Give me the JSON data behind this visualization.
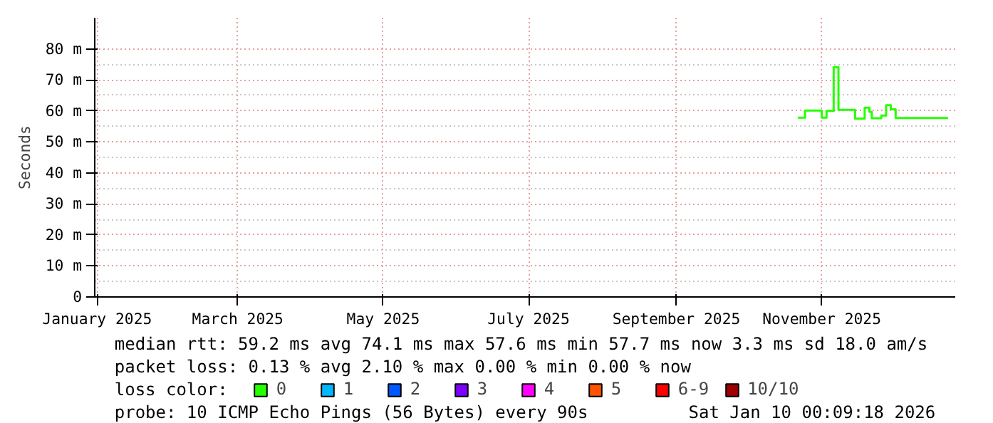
{
  "chart_data": {
    "type": "step",
    "ylabel": "Seconds",
    "x": [
      "2025-11-05",
      "2025-11-08",
      "2025-11-15",
      "2025-11-17",
      "2025-11-20",
      "2025-11-22",
      "2025-11-29",
      "2025-12-03",
      "2025-12-05",
      "2025-12-06",
      "2025-12-10",
      "2025-12-12",
      "2025-12-14",
      "2025-12-16",
      "2026-01-07"
    ],
    "series": [
      {
        "name": "0",
        "color": "#26ff00",
        "values": [
          57.8,
          60.1,
          57.8,
          60.0,
          74.1,
          60.3,
          57.5,
          61.0,
          59.7,
          57.6,
          58.5,
          61.8,
          60.5,
          57.7,
          57.7
        ]
      },
      {
        "name": "1",
        "color": "#00b8ff",
        "values": [
          null,
          null,
          null,
          null,
          null,
          null,
          null,
          null,
          null,
          null,
          null,
          null,
          null,
          null,
          null
        ]
      },
      {
        "name": "2",
        "color": "#0059ff",
        "values": [
          null,
          null,
          null,
          null,
          null,
          null,
          null,
          null,
          null,
          null,
          null,
          null,
          null,
          null,
          null
        ]
      },
      {
        "name": "3",
        "color": "#7e00ff",
        "values": [
          null,
          null,
          null,
          null,
          null,
          null,
          null,
          null,
          null,
          null,
          null,
          null,
          null,
          null,
          null
        ]
      },
      {
        "name": "4",
        "color": "#ff00ff",
        "values": [
          null,
          null,
          null,
          null,
          null,
          null,
          null,
          null,
          null,
          null,
          null,
          null,
          null,
          null,
          null
        ]
      },
      {
        "name": "5",
        "color": "#ff5500",
        "values": [
          null,
          null,
          null,
          null,
          null,
          null,
          null,
          null,
          null,
          null,
          null,
          null,
          null,
          null,
          null
        ]
      },
      {
        "name": "6-9",
        "color": "#ff0000",
        "values": [
          null,
          null,
          null,
          null,
          null,
          null,
          null,
          null,
          null,
          null,
          null,
          null,
          null,
          null,
          null
        ]
      },
      {
        "name": "10/10",
        "color": "#a10000",
        "values": [
          null,
          null,
          null,
          null,
          null,
          null,
          null,
          null,
          null,
          null,
          null,
          null,
          null,
          null,
          null
        ]
      }
    ],
    "legend_title": "loss color:",
    "legend": "bottom",
    "xlim": [
      "2025-01-14",
      "2026-01-10"
    ],
    "xticks": [
      {
        "value": "2025-01-15",
        "label": "January 2025"
      },
      {
        "value": "2025-03-15",
        "label": "March 2025"
      },
      {
        "value": "2025-05-15",
        "label": "May 2025"
      },
      {
        "value": "2025-07-15",
        "label": "July 2025"
      },
      {
        "value": "2025-09-15",
        "label": "September 2025"
      },
      {
        "value": "2025-11-15",
        "label": "November 2025"
      }
    ],
    "ylim": [
      0,
      90
    ],
    "yticks": [
      0,
      {
        "value": 10,
        "label": "10 m"
      },
      {
        "value": 20,
        "label": "20 m"
      },
      {
        "value": 30,
        "label": "30 m"
      },
      {
        "value": 40,
        "label": "40 m"
      },
      {
        "value": 50,
        "label": "50 m"
      },
      {
        "value": 60,
        "label": "60 m"
      },
      {
        "value": 70,
        "label": "70 m"
      },
      {
        "value": 80,
        "label": "80 m"
      }
    ],
    "grid": true,
    "annotations": [
      "median rtt:  59.2 ms avg  74.1 ms max  57.6 ms min  57.7 ms now  3.3 ms sd  18.0   am/s",
      "packet loss: 0.13 % avg  2.10 % max  0.00 % min  0.00 % now",
      "probe:       10 ICMP Echo Pings (56 Bytes) every 90s",
      "Sat Jan 10 00:09:18 2026"
    ]
  }
}
